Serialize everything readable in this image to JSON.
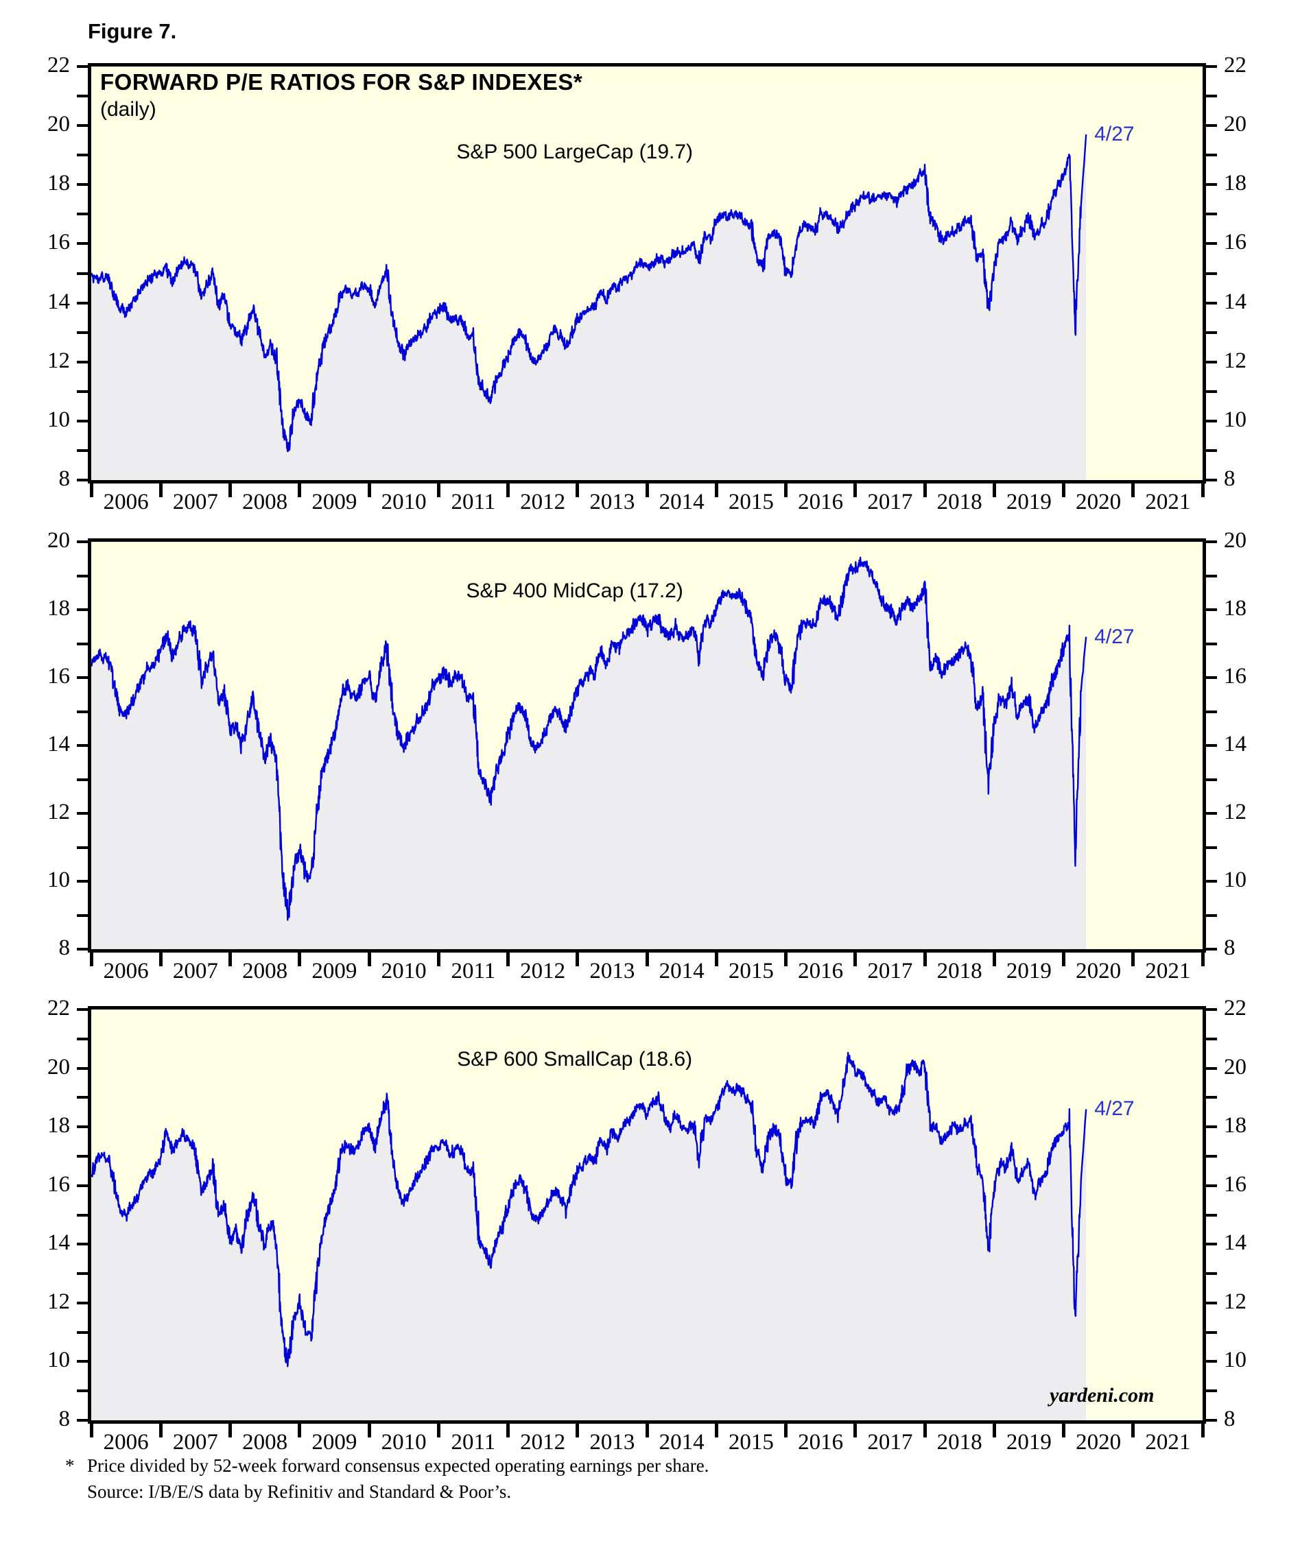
{
  "page": {
    "figure_label": "Figure 7.",
    "title": "FORWARD P/E RATIOS FOR S&P INDEXES*",
    "subtitle": "(daily)",
    "watermark": "yardeni.com",
    "footnote": {
      "marker": "*",
      "line1": "Price divided by 52-week forward consensus expected operating earnings per share.",
      "line2": "Source: I/B/E/S data by Refinitiv and Standard & Poor’s."
    }
  },
  "colors": {
    "plot_bg": "#FFFFE4",
    "area_fill": "#EDEDEF",
    "line": "#0000D8",
    "annotation": "#2633CC",
    "axis": "#000000"
  },
  "chart_data": {
    "type": "line",
    "x_unit": "year",
    "xlim": [
      2006,
      2022
    ],
    "x_years": [
      2006,
      2007,
      2008,
      2009,
      2010,
      2011,
      2012,
      2013,
      2014,
      2015,
      2016,
      2017,
      2018,
      2019,
      2020,
      2021
    ],
    "monthly_x_start": "2006-01",
    "monthly_x_end": "2020-04",
    "final_point_date": "4/27",
    "final_point_x": 2020.323,
    "grid": "off",
    "legend": "none",
    "panels": [
      {
        "name": "S&P 500 LargeCap",
        "label": "S&P 500 LargeCap (19.7)",
        "final_value": 19.7,
        "ylim": [
          8,
          22
        ],
        "yticks_labeled": [
          8,
          10,
          12,
          14,
          16,
          18,
          20,
          22
        ],
        "monthly_values": [
          14.9,
          14.8,
          14.9,
          14.8,
          14.2,
          13.8,
          13.7,
          14.0,
          14.3,
          14.6,
          14.8,
          15.0,
          15.0,
          15.2,
          14.7,
          15.1,
          15.4,
          15.3,
          15.2,
          14.2,
          14.6,
          15.0,
          13.9,
          14.3,
          13.2,
          13.0,
          12.7,
          13.3,
          13.8,
          13.0,
          12.2,
          12.6,
          12.0,
          10.0,
          8.9,
          10.3,
          10.7,
          10.2,
          10.0,
          11.5,
          12.5,
          13.0,
          13.4,
          14.2,
          14.5,
          14.3,
          14.3,
          14.6,
          14.5,
          13.9,
          14.6,
          15.1,
          13.5,
          12.7,
          12.2,
          12.6,
          12.8,
          13.0,
          13.2,
          13.6,
          13.7,
          13.9,
          13.4,
          13.5,
          13.4,
          12.9,
          12.9,
          11.3,
          11.0,
          10.7,
          11.4,
          11.7,
          12.2,
          12.7,
          13.0,
          12.8,
          12.1,
          12.0,
          12.3,
          12.7,
          13.1,
          12.9,
          12.5,
          12.9,
          13.4,
          13.6,
          13.8,
          13.9,
          14.4,
          14.1,
          14.6,
          14.5,
          14.8,
          14.9,
          15.2,
          15.4,
          15.2,
          15.3,
          15.5,
          15.4,
          15.5,
          15.7,
          15.7,
          15.8,
          16.0,
          15.4,
          16.3,
          16.2,
          16.7,
          17.0,
          16.9,
          17.0,
          17.0,
          16.7,
          16.6,
          15.5,
          15.2,
          16.2,
          16.4,
          16.1,
          15.1,
          15.0,
          16.3,
          16.6,
          16.6,
          16.4,
          17.0,
          17.0,
          16.8,
          16.5,
          16.7,
          17.1,
          17.3,
          17.6,
          17.6,
          17.5,
          17.6,
          17.6,
          17.7,
          17.4,
          17.7,
          17.9,
          18.0,
          18.3,
          18.5,
          16.9,
          16.6,
          16.1,
          16.3,
          16.4,
          16.6,
          16.8,
          16.8,
          15.5,
          15.7,
          13.7,
          15.2,
          16.1,
          16.2,
          16.7,
          16.1,
          16.5,
          16.9,
          16.2,
          16.6,
          16.8,
          17.5,
          17.9,
          18.3,
          18.9,
          13.2,
          17.3
        ]
      },
      {
        "name": "S&P 400 MidCap",
        "label": "S&P 400 MidCap (17.2)",
        "final_value": 17.2,
        "ylim": [
          8,
          20
        ],
        "yticks_labeled": [
          8,
          10,
          12,
          14,
          16,
          18,
          20
        ],
        "monthly_values": [
          16.4,
          16.7,
          16.6,
          16.5,
          15.8,
          15.0,
          14.9,
          15.2,
          15.6,
          16.0,
          16.3,
          16.4,
          16.8,
          17.2,
          16.6,
          17.0,
          17.4,
          17.5,
          17.3,
          15.9,
          16.3,
          16.8,
          15.3,
          15.6,
          14.4,
          14.6,
          13.9,
          14.8,
          15.4,
          14.4,
          13.6,
          14.2,
          13.5,
          10.5,
          8.9,
          10.3,
          11.0,
          10.2,
          10.1,
          12.0,
          13.3,
          13.8,
          14.3,
          15.3,
          15.8,
          15.5,
          15.4,
          15.9,
          16.0,
          15.3,
          16.2,
          17.1,
          15.3,
          14.3,
          13.9,
          14.3,
          14.6,
          14.9,
          15.2,
          15.8,
          15.9,
          16.2,
          15.8,
          16.1,
          16.0,
          15.4,
          15.4,
          13.2,
          12.9,
          12.4,
          13.3,
          13.7,
          14.3,
          14.9,
          15.2,
          14.9,
          14.1,
          13.9,
          14.2,
          14.6,
          15.1,
          14.9,
          14.5,
          15.1,
          15.7,
          15.9,
          16.2,
          16.1,
          16.8,
          16.4,
          17.0,
          16.8,
          17.2,
          17.3,
          17.6,
          17.8,
          17.4,
          17.7,
          17.7,
          17.3,
          17.2,
          17.5,
          17.2,
          17.2,
          17.4,
          16.6,
          17.7,
          17.6,
          18.0,
          18.4,
          18.5,
          18.4,
          18.5,
          18.1,
          17.8,
          16.5,
          16.0,
          17.0,
          17.3,
          16.9,
          15.9,
          15.7,
          17.2,
          17.6,
          17.6,
          17.5,
          18.2,
          18.3,
          18.1,
          17.7,
          18.5,
          19.2,
          19.2,
          19.4,
          19.3,
          19.0,
          18.5,
          18.1,
          18.0,
          17.7,
          18.0,
          18.3,
          18.1,
          18.3,
          18.6,
          16.3,
          16.6,
          16.1,
          16.4,
          16.5,
          16.7,
          16.9,
          16.7,
          15.1,
          15.4,
          12.8,
          14.6,
          15.4,
          15.2,
          15.8,
          14.9,
          15.2,
          15.4,
          14.4,
          15.0,
          15.2,
          15.9,
          16.3,
          16.9,
          17.2,
          10.8,
          15.6
        ]
      },
      {
        "name": "S&P 600 SmallCap",
        "label": "S&P 600 SmallCap (18.6)",
        "final_value": 18.6,
        "ylim": [
          8,
          22
        ],
        "yticks_labeled": [
          8,
          10,
          12,
          14,
          16,
          18,
          20,
          22
        ],
        "monthly_values": [
          16.3,
          16.9,
          17.1,
          16.8,
          16.0,
          15.2,
          15.0,
          15.3,
          15.6,
          16.1,
          16.4,
          16.5,
          17.0,
          17.8,
          17.2,
          17.5,
          17.8,
          17.5,
          17.2,
          15.8,
          16.2,
          16.6,
          15.0,
          15.4,
          14.1,
          14.5,
          13.9,
          15.0,
          15.7,
          14.6,
          14.0,
          14.8,
          14.0,
          11.0,
          9.9,
          11.5,
          12.0,
          11.0,
          10.9,
          13.0,
          14.5,
          15.2,
          15.8,
          17.0,
          17.5,
          17.2,
          17.3,
          17.8,
          18.0,
          17.3,
          18.3,
          18.9,
          17.0,
          15.9,
          15.4,
          15.8,
          16.2,
          16.5,
          16.8,
          17.3,
          17.3,
          17.5,
          17.0,
          17.3,
          17.2,
          16.5,
          16.5,
          14.2,
          13.8,
          13.3,
          14.2,
          14.6,
          15.3,
          15.9,
          16.2,
          15.9,
          15.0,
          14.8,
          15.1,
          15.4,
          15.9,
          15.6,
          15.2,
          15.9,
          16.5,
          16.7,
          17.0,
          16.8,
          17.6,
          17.2,
          17.9,
          17.6,
          18.1,
          18.2,
          18.6,
          18.8,
          18.4,
          18.8,
          19.0,
          18.3,
          18.0,
          18.4,
          18.0,
          17.9,
          18.1,
          17.0,
          18.3,
          18.2,
          18.6,
          19.2,
          19.4,
          19.2,
          19.4,
          19.0,
          18.8,
          17.2,
          16.6,
          17.6,
          18.0,
          17.6,
          16.2,
          16.0,
          17.8,
          18.2,
          18.2,
          18.1,
          19.0,
          19.2,
          18.9,
          18.4,
          19.5,
          20.4,
          19.9,
          19.8,
          19.4,
          19.2,
          18.8,
          19.0,
          18.6,
          18.5,
          19.0,
          19.9,
          20.2,
          19.8,
          20.2,
          17.9,
          18.0,
          17.5,
          17.8,
          18.1,
          17.9,
          18.1,
          18.2,
          16.7,
          16.3,
          13.8,
          15.9,
          16.8,
          16.6,
          17.3,
          16.1,
          16.5,
          16.8,
          15.7,
          16.2,
          16.4,
          17.3,
          17.6,
          17.9,
          18.1,
          11.4,
          16.2
        ]
      }
    ]
  }
}
